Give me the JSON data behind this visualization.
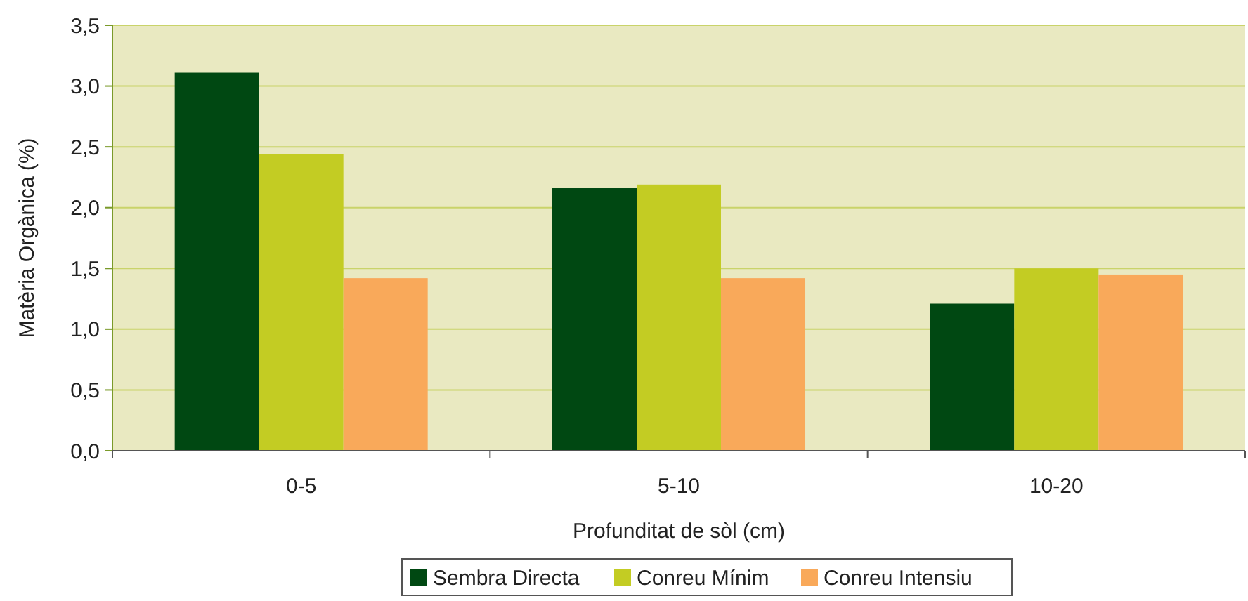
{
  "chart_data": {
    "type": "bar",
    "xlabel": "Profunditat de sòl (cm)",
    "ylabel": "Matèria Orgànica (%)",
    "categories": [
      "0-5",
      "5-10",
      "10-20"
    ],
    "series": [
      {
        "name": "Sembra Directa",
        "color": "#004812",
        "values": [
          3.11,
          2.16,
          1.21
        ]
      },
      {
        "name": "Conreu Mínim",
        "color": "#c3cc23",
        "values": [
          2.44,
          2.19,
          1.5
        ]
      },
      {
        "name": "Conreu Intensiu",
        "color": "#f9a95a",
        "values": [
          1.42,
          1.42,
          1.45
        ]
      }
    ],
    "ylim": [
      0,
      3.5
    ],
    "yticks": [
      {
        "value": 0,
        "label": "0,0"
      },
      {
        "value": 0.5,
        "label": "0,5"
      },
      {
        "value": 1,
        "label": "1,0"
      },
      {
        "value": 1.5,
        "label": "1,5"
      },
      {
        "value": 2,
        "label": "2,0"
      },
      {
        "value": 2.5,
        "label": "2,5"
      },
      {
        "value": 3,
        "label": "3,0"
      },
      {
        "value": 3.5,
        "label": "3,5"
      }
    ],
    "grid": "y",
    "legend": "bottom"
  }
}
